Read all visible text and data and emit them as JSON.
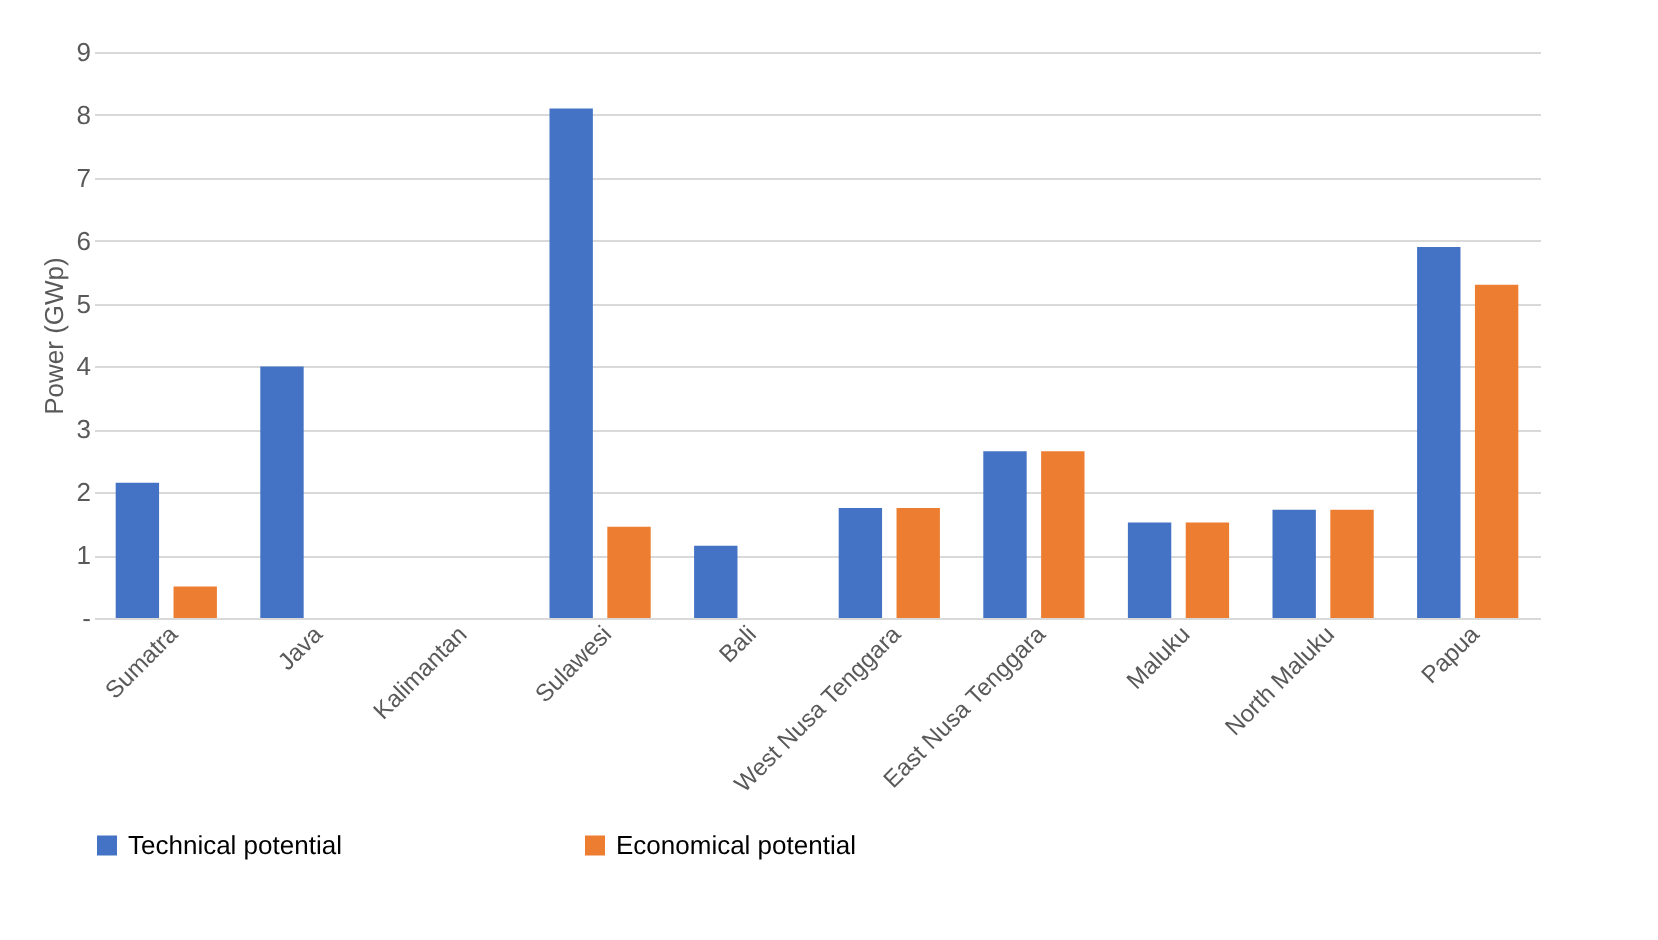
{
  "chart_data": {
    "type": "bar",
    "ylabel": "Power (GWp)",
    "categories": [
      "Sumatra",
      "Java",
      "Kalimantan",
      "Sulawesi",
      "Bali",
      "West Nusa Tenggara",
      "East Nusa Tenggara",
      "Maluku",
      "North Maluku",
      "Papua"
    ],
    "series": [
      {
        "name": "Technical potential",
        "color": "#4472c4",
        "values": [
          2.15,
          4.0,
          0,
          8.1,
          1.15,
          1.75,
          2.65,
          1.52,
          1.72,
          5.9
        ]
      },
      {
        "name": "Economical potential",
        "color": "#ed7d31",
        "values": [
          0.5,
          0,
          0,
          1.45,
          0,
          1.75,
          2.65,
          1.52,
          1.72,
          5.3
        ]
      }
    ],
    "ylim": [
      0,
      9
    ],
    "yticks": [
      {
        "value": 0,
        "label": "-"
      },
      1,
      2,
      3,
      4,
      5,
      6,
      7,
      8,
      9
    ],
    "grid": "y",
    "legend": "bottom"
  }
}
